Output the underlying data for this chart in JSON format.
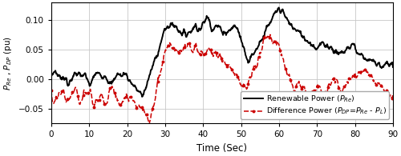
{
  "xlim": [
    0,
    90
  ],
  "ylim": [
    -0.075,
    0.13
  ],
  "yticks": [
    -0.05,
    0,
    0.05,
    0.1
  ],
  "xticks": [
    0,
    10,
    20,
    30,
    40,
    50,
    60,
    70,
    80,
    90
  ],
  "xlabel": "Time (Sec)",
  "ylabel": "$P_{Re}$ , $P_{DP}$ (pu)",
  "legend_renewable": "Renewable Power ($P_{Re}$)",
  "legend_diff": "Difference Power ($P_{DP}$=$P_{Re}$ - $P_{L}$)",
  "black_color": "#000000",
  "red_color": "#cc0000",
  "grid_color": "#c8c8c8",
  "bg_color": "#ffffff",
  "seed": 7
}
